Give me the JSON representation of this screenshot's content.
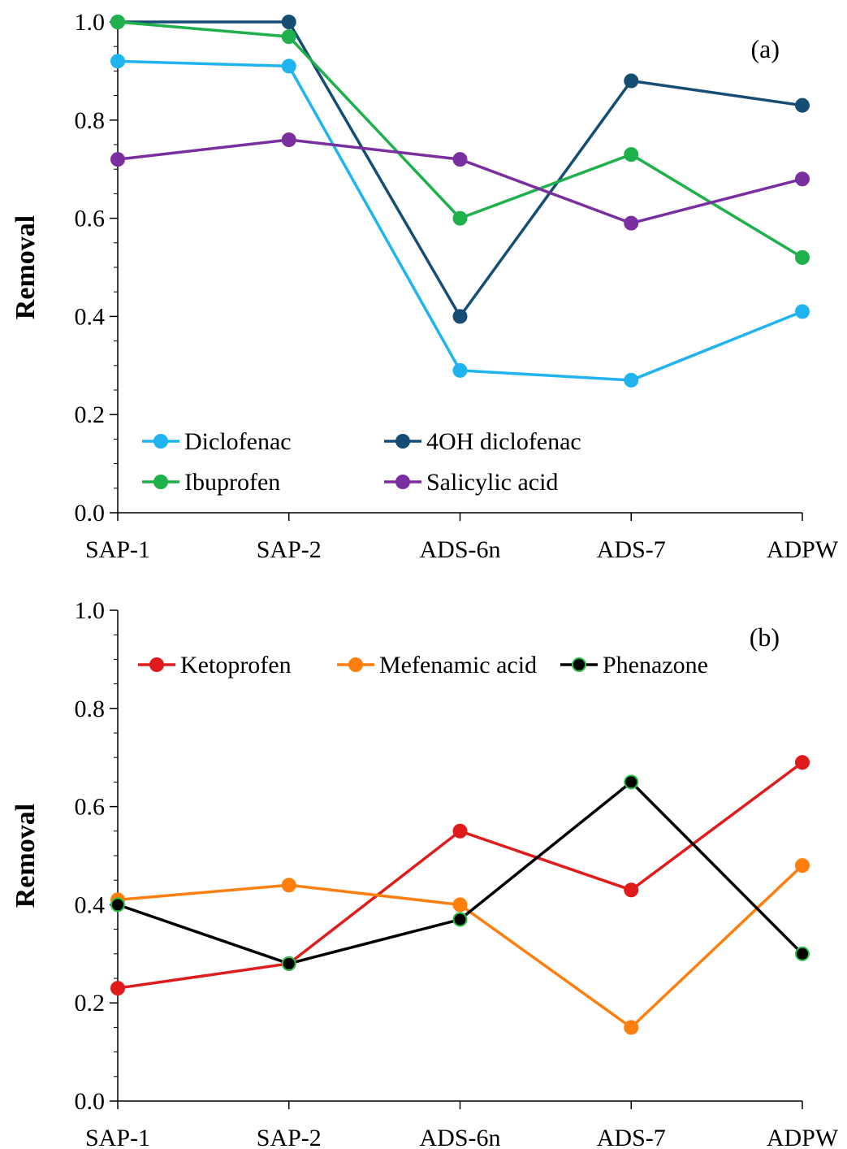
{
  "chart_data": [
    {
      "type": "line",
      "panel_label": "(a)",
      "ylabel": "Removal",
      "xlabel": "",
      "categories": [
        "SAP-1",
        "SAP-2",
        "ADS-6n",
        "ADS-7",
        "ADPW"
      ],
      "ylim": [
        0,
        1.0
      ],
      "yticks": [
        "0.0",
        "0.2",
        "0.4",
        "0.6",
        "0.8",
        "1.0"
      ],
      "yticks_values": [
        0,
        0.2,
        0.4,
        0.6,
        0.8,
        1.0
      ],
      "grid": false,
      "legend_placement": "bottom-left",
      "legend_columns": 2,
      "series": [
        {
          "name": "Diclofenac",
          "color": "#1fb4f0",
          "marker_edge": "#1fb4f0",
          "values": [
            0.92,
            0.91,
            0.29,
            0.27,
            0.41
          ]
        },
        {
          "name": "4OH diclofenac",
          "color": "#154d75",
          "marker_edge": "#154d75",
          "values": [
            1.0,
            1.0,
            0.4,
            0.88,
            0.83
          ]
        },
        {
          "name": "Ibuprofen",
          "color": "#1eb04b",
          "marker_edge": "#1eb04b",
          "values": [
            1.0,
            0.97,
            0.6,
            0.73,
            0.52
          ]
        },
        {
          "name": "Salicylic acid",
          "color": "#7a2fa0",
          "marker_edge": "#7a2fa0",
          "values": [
            0.72,
            0.76,
            0.72,
            0.59,
            0.68
          ]
        }
      ]
    },
    {
      "type": "line",
      "panel_label": "(b)",
      "ylabel": "Removal",
      "xlabel": "",
      "categories": [
        "SAP-1",
        "SAP-2",
        "ADS-6n",
        "ADS-7",
        "ADPW"
      ],
      "ylim": [
        0,
        1.0
      ],
      "yticks": [
        "0.0",
        "0.2",
        "0.4",
        "0.6",
        "0.8",
        "1.0"
      ],
      "yticks_values": [
        0,
        0.2,
        0.4,
        0.6,
        0.8,
        1.0
      ],
      "grid": false,
      "legend_placement": "top-left",
      "legend_columns": 3,
      "series": [
        {
          "name": "Ketoprofen",
          "color": "#e01b1b",
          "marker_edge": "#e01b1b",
          "values": [
            0.23,
            0.28,
            0.55,
            0.43,
            0.69
          ]
        },
        {
          "name": "Mefenamic acid",
          "color": "#ff7f0e",
          "marker_edge": "#ff7f0e",
          "values": [
            0.41,
            0.44,
            0.4,
            0.15,
            0.48
          ]
        },
        {
          "name": "Phenazone",
          "color": "#000000",
          "marker_edge": "#2bbf4a",
          "values": [
            0.4,
            0.28,
            0.37,
            0.65,
            0.3
          ]
        }
      ]
    }
  ]
}
